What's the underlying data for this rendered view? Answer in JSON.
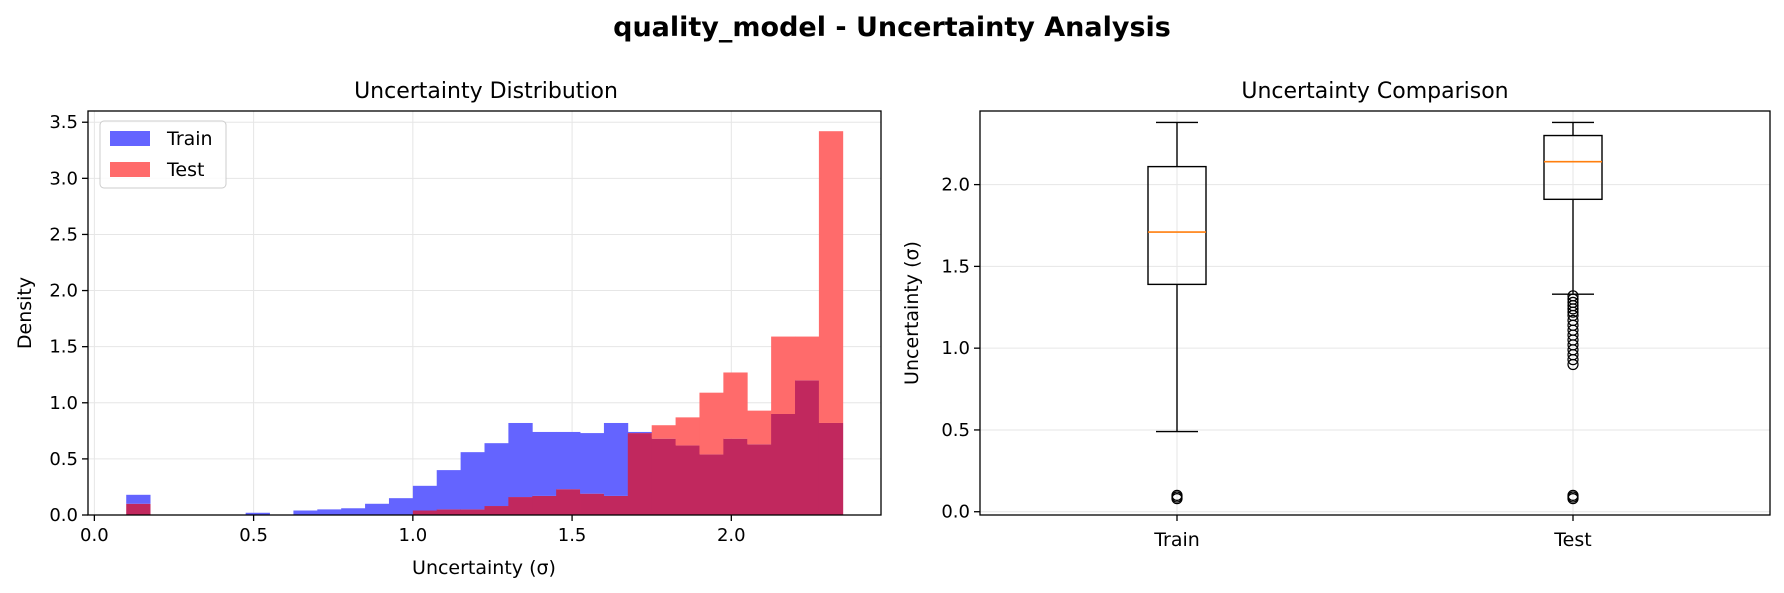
{
  "suptitle": "quality_model - Uncertainty Analysis",
  "colors": {
    "train": "#6464ff",
    "test": "#ff6b6b",
    "overlap": "#c1285e",
    "median": "#ff7f0e",
    "grid": "#e6e6e6",
    "axis": "#000000"
  },
  "chart_data": [
    {
      "type": "histogram",
      "title": "Uncertainty Distribution",
      "xlabel": "Uncertainty (σ)",
      "ylabel": "Density",
      "xlim": [
        -0.02,
        2.47
      ],
      "ylim": [
        0,
        3.6
      ],
      "xticks": [
        0.0,
        0.5,
        1.0,
        1.5,
        2.0
      ],
      "xtick_labels": [
        "0.0",
        "0.5",
        "1.0",
        "1.5",
        "2.0"
      ],
      "yticks": [
        0.0,
        0.5,
        1.0,
        1.5,
        2.0,
        2.5,
        3.0,
        3.5
      ],
      "ytick_labels": [
        "0.0",
        "0.5",
        "1.0",
        "1.5",
        "2.0",
        "2.5",
        "3.0",
        "3.5"
      ],
      "grid": true,
      "legend": {
        "position": "upper-left",
        "entries": [
          "Train",
          "Test"
        ]
      },
      "bin_edges": [
        0.1,
        0.175,
        0.25,
        0.325,
        0.4,
        0.475,
        0.55,
        0.625,
        0.7,
        0.775,
        0.85,
        0.925,
        1.0,
        1.075,
        1.15,
        1.225,
        1.3,
        1.375,
        1.45,
        1.525,
        1.6,
        1.675,
        1.75,
        1.825,
        1.9,
        1.975,
        2.05,
        2.125,
        2.2,
        2.275,
        2.35
      ],
      "series": [
        {
          "name": "Train",
          "values": [
            0.18,
            0,
            0,
            0,
            0,
            0.02,
            0,
            0.04,
            0.05,
            0.06,
            0.1,
            0.15,
            0.26,
            0.4,
            0.56,
            0.64,
            0.82,
            0.74,
            0.74,
            0.73,
            0.82,
            0.74,
            0.68,
            0.62,
            0.54,
            0.68,
            0.63,
            0.9,
            1.2,
            0.82
          ]
        },
        {
          "name": "Test",
          "values": [
            0.1,
            0,
            0,
            0,
            0,
            0,
            0,
            0,
            0,
            0,
            0,
            0,
            0.04,
            0.05,
            0.05,
            0.08,
            0.16,
            0.17,
            0.23,
            0.19,
            0.17,
            0.73,
            0.8,
            0.87,
            1.09,
            1.27,
            0.93,
            1.59,
            1.59,
            3.42
          ]
        }
      ]
    },
    {
      "type": "boxplot",
      "title": "Uncertainty Comparison",
      "xlabel": "",
      "ylabel": "Uncertainty (σ)",
      "ylim": [
        -0.02,
        2.45
      ],
      "yticks": [
        0.0,
        0.5,
        1.0,
        1.5,
        2.0
      ],
      "ytick_labels": [
        "0.0",
        "0.5",
        "1.0",
        "1.5",
        "2.0"
      ],
      "grid": true,
      "categories": [
        "Train",
        "Test"
      ],
      "boxes": [
        {
          "name": "Train",
          "whisker_low": 0.49,
          "q1": 1.39,
          "median": 1.71,
          "q3": 2.11,
          "whisker_high": 2.38,
          "outliers": [
            0.08,
            0.09,
            0.1
          ]
        },
        {
          "name": "Test",
          "whisker_low": 1.33,
          "q1": 1.91,
          "median": 2.14,
          "q3": 2.3,
          "whisker_high": 2.38,
          "outliers": [
            0.08,
            0.09,
            0.1,
            0.9,
            0.93,
            0.96,
            0.99,
            1.02,
            1.05,
            1.08,
            1.11,
            1.14,
            1.17,
            1.2,
            1.22,
            1.24,
            1.26,
            1.28,
            1.3,
            1.32
          ]
        }
      ]
    }
  ]
}
